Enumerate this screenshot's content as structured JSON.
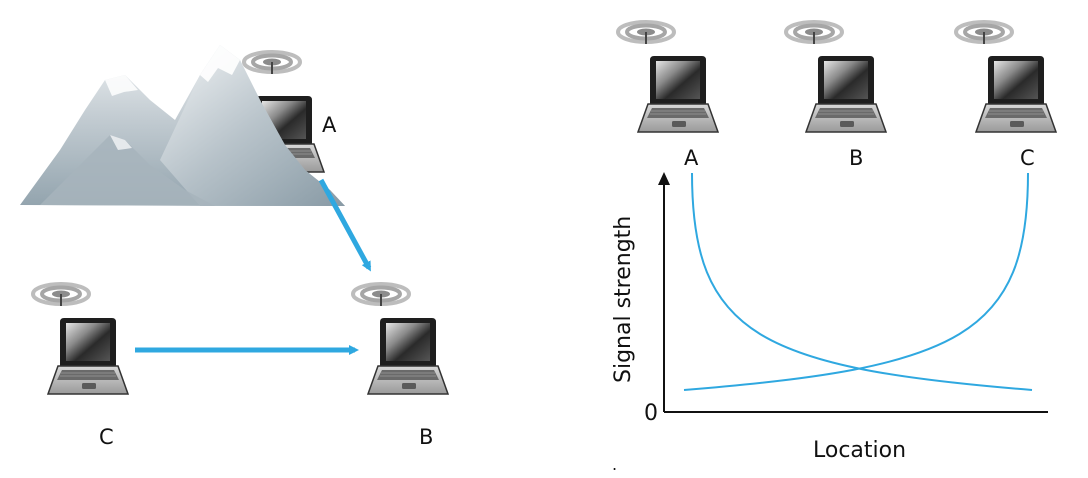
{
  "left_panel": {
    "node_labels": {
      "a": "A",
      "b": "B",
      "c": "C"
    }
  },
  "right_panel": {
    "node_labels": {
      "a": "A",
      "b": "B",
      "c": "C"
    },
    "chart": {
      "y_label": "Signal strength",
      "x_label": "Location",
      "y_origin_label": "0"
    }
  },
  "colors": {
    "arrow": "#2fa8e0",
    "curve": "#2fa8e0",
    "axis": "#111111"
  },
  "icons": [
    "laptop-icon",
    "antenna-icon",
    "mountain-icon",
    "arrow-icon"
  ],
  "footnote": "."
}
